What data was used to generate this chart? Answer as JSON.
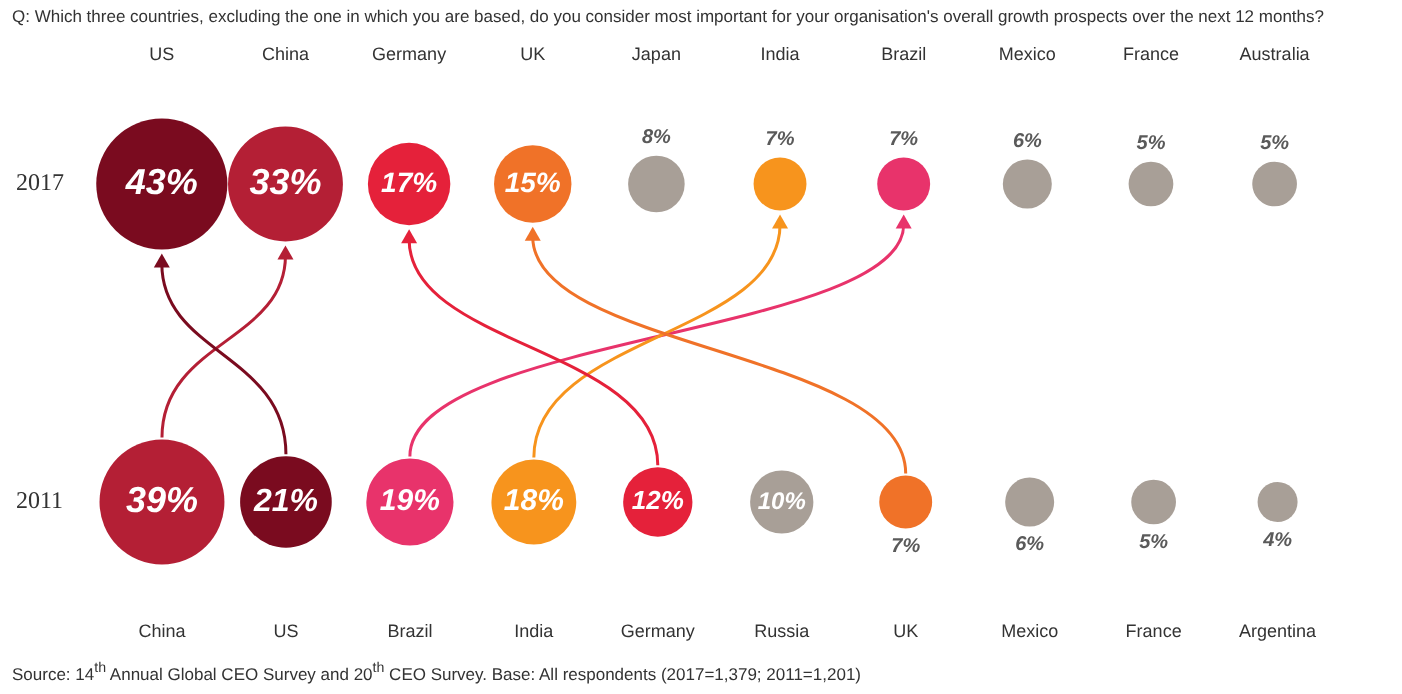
{
  "chart_data": [
    {
      "type": "other",
      "title": "Q: Which three countries, excluding the one in which you are based, do you consider most important for your organisation's overall growth prospects over the next 12 months?",
      "ylabel": "2017",
      "categories": [
        "US",
        "China",
        "Germany",
        "UK",
        "Japan",
        "India",
        "Brazil",
        "Mexico",
        "France",
        "Australia"
      ],
      "values": [
        43,
        33,
        17,
        15,
        8,
        7,
        7,
        6,
        5,
        5
      ],
      "value_labels": [
        "43%",
        "33%",
        "17%",
        "15%",
        "8%",
        "7%",
        "7%",
        "6%",
        "5%",
        "5%"
      ],
      "colors": [
        "#7a0b1f",
        "#b41f35",
        "#e5213a",
        "#f07228",
        "#a89f97",
        "#f7941d",
        "#e8336b",
        "#a89f97",
        "#a89f97",
        "#a89f97"
      ]
    },
    {
      "type": "other",
      "ylabel": "2011",
      "categories": [
        "China",
        "US",
        "Brazil",
        "India",
        "Germany",
        "Russia",
        "UK",
        "Mexico",
        "France",
        "Argentina"
      ],
      "values": [
        39,
        21,
        19,
        18,
        12,
        10,
        7,
        6,
        5,
        4
      ],
      "value_labels": [
        "39%",
        "21%",
        "19%",
        "18%",
        "12%",
        "10%",
        "7%",
        "6%",
        "5%",
        "4%"
      ],
      "colors": [
        "#b41f35",
        "#7a0b1f",
        "#e8336b",
        "#f7941d",
        "#e5213a",
        "#a89f97",
        "#f07228",
        "#a89f97",
        "#a89f97",
        "#a89f97"
      ],
      "annotations": [
        "Source: 14$^{th}$ Annual Global CEO Survey and 20$^{th}$ CEO Survey. Base: All respondents (2017=1,379; 2011=1,201)"
      ]
    }
  ]
}
